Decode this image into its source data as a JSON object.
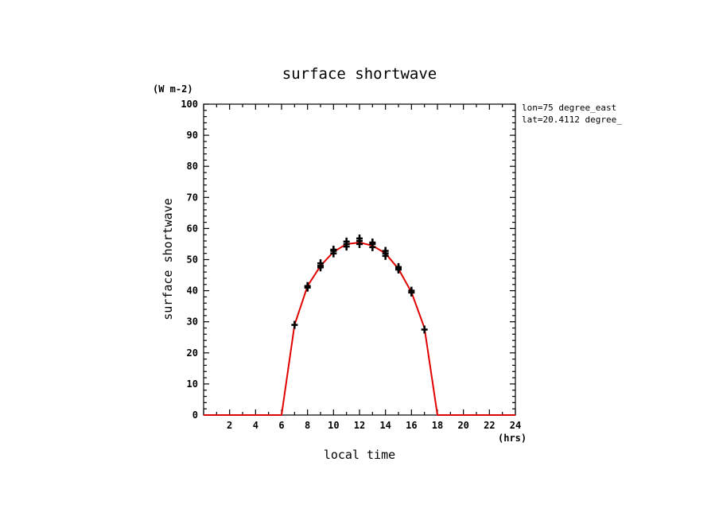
{
  "chart_data": {
    "type": "line",
    "title": "surface shortwave",
    "ylabel": "surface shortwave",
    "y_unit": "(W m-2)",
    "xlabel": "local time",
    "x_unit": "(hrs)",
    "annotations": [
      "lon=75 degree_east",
      "lat=20.4112 degree_"
    ],
    "xlim": [
      0,
      24
    ],
    "ylim": [
      0,
      100
    ],
    "x_ticks": [
      2,
      4,
      6,
      8,
      10,
      12,
      14,
      16,
      18,
      20,
      22,
      24
    ],
    "y_ticks": [
      0,
      10,
      20,
      30,
      40,
      50,
      60,
      70,
      80,
      90,
      100
    ],
    "grid": false,
    "colors": {
      "line": "#e00000",
      "markers": "#000000",
      "axes": "#000000"
    },
    "series": [
      {
        "style": "line",
        "x": [
          0,
          1,
          2,
          3,
          4,
          5,
          6,
          7,
          8,
          9,
          10,
          11,
          12,
          13,
          14,
          15,
          16,
          17,
          18,
          19,
          20,
          21,
          22,
          23,
          24
        ],
        "values": [
          0,
          0,
          0,
          0,
          0,
          0,
          0,
          29,
          41.5,
          48,
          52.5,
          55,
          55.5,
          54.5,
          52,
          47,
          39.5,
          28,
          0,
          0,
          0,
          0,
          0,
          0,
          0
        ]
      },
      {
        "style": "markers",
        "marker": "plus",
        "x": [
          7,
          8,
          8,
          9,
          9,
          9,
          10,
          10,
          10,
          11,
          11,
          11,
          12,
          12,
          12,
          13,
          13,
          13,
          14,
          14,
          14,
          15,
          15,
          15,
          16,
          16,
          17
        ],
        "values": [
          29,
          41,
          41.5,
          47.5,
          48,
          48.8,
          52,
          52.8,
          53.2,
          54.2,
          55,
          55.8,
          55,
          56,
          56.8,
          54,
          55,
          55.5,
          51.2,
          52,
          52.8,
          46.8,
          47.2,
          47.6,
          39.4,
          40,
          27.5
        ]
      }
    ]
  }
}
